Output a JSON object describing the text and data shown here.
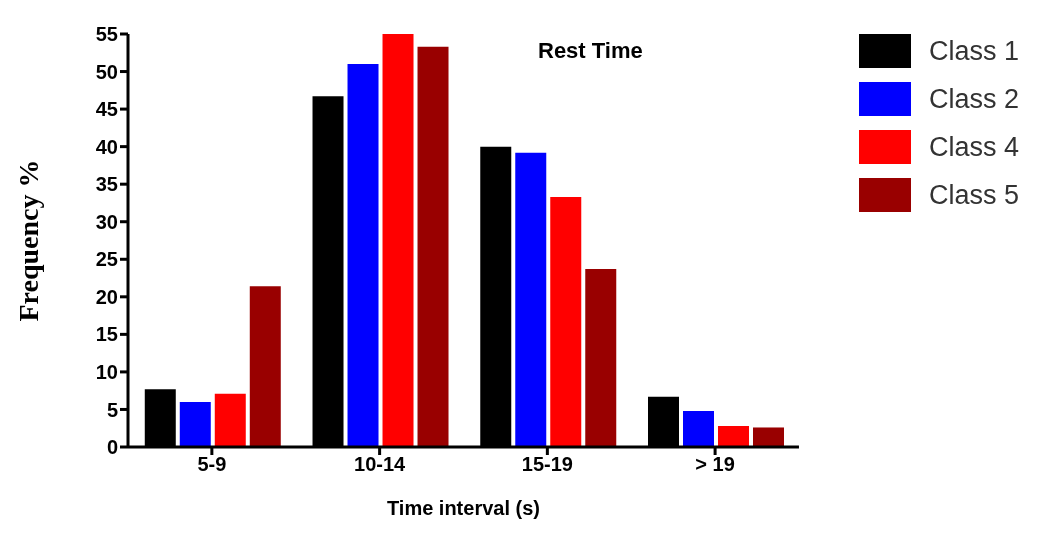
{
  "chart_data": {
    "type": "bar",
    "title": "Rest Time",
    "xlabel": "Time interval (s)",
    "ylabel": "Frequency %",
    "categories": [
      "5-9",
      "10-14",
      "15-19",
      "> 19"
    ],
    "series": [
      {
        "name": "Class 1",
        "color": "#000000",
        "values": [
          7.7,
          46.7,
          40,
          6.7
        ]
      },
      {
        "name": "Class 2",
        "color": "#0000ff",
        "values": [
          6,
          51,
          39.2,
          4.8
        ]
      },
      {
        "name": "Class 4",
        "color": "#ff0000",
        "values": [
          7.1,
          55,
          33.3,
          2.8
        ]
      },
      {
        "name": "Class 5",
        "color": "#990000",
        "values": [
          21.4,
          53.3,
          23.7,
          2.6
        ]
      }
    ],
    "ylim": [
      0,
      55
    ],
    "yticks": [
      0,
      5,
      10,
      15,
      20,
      25,
      30,
      35,
      40,
      45,
      50,
      55
    ],
    "grid": false,
    "legend": "right"
  }
}
